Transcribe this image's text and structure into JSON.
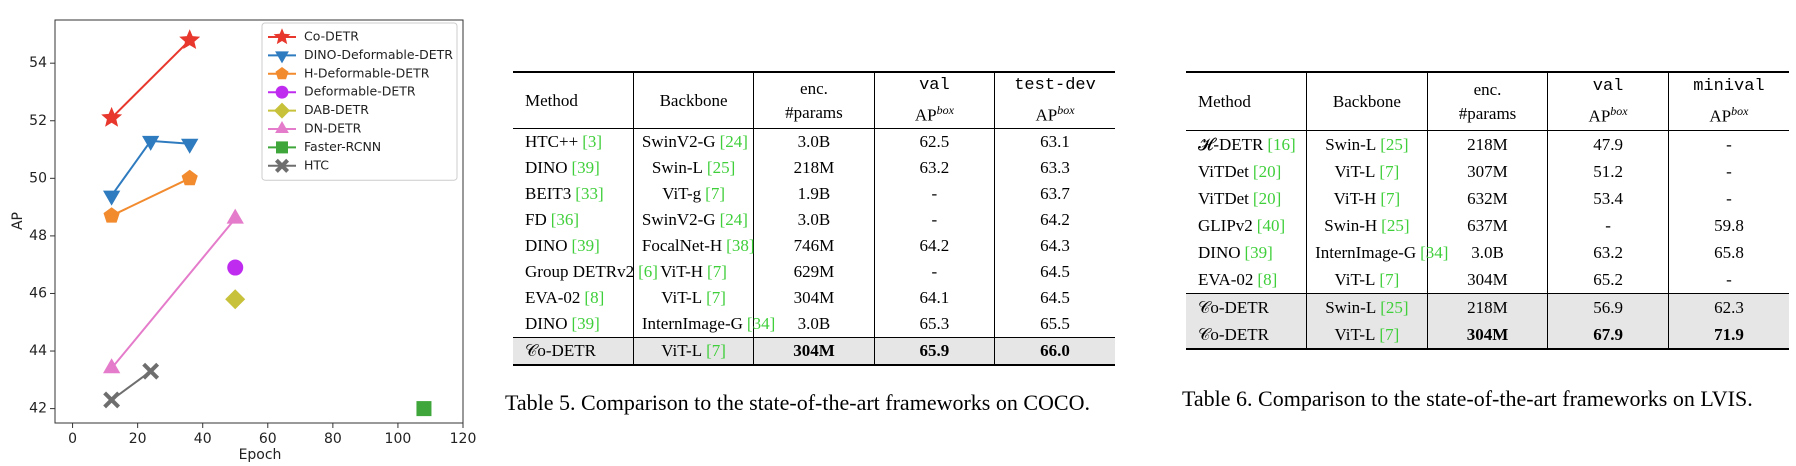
{
  "chart_data": {
    "type": "line",
    "x_label": "Epoch",
    "y_label": "AP",
    "xlim": [
      -5.4,
      120
    ],
    "ylim": [
      41.5,
      55.5
    ],
    "xticks": [
      0,
      20,
      40,
      60,
      80,
      100,
      120
    ],
    "yticks": [
      42,
      44,
      46,
      48,
      50,
      52,
      54
    ],
    "grid": false,
    "legend": "upper right",
    "series": [
      {
        "name": "Co-DETR",
        "color": "#e8372c",
        "marker": "star",
        "x": [
          12,
          36
        ],
        "y": [
          52.1,
          54.8
        ]
      },
      {
        "name": "DINO-Deformable-DETR",
        "color": "#2f7bbf",
        "marker": "triangle-down",
        "x": [
          12,
          24,
          36
        ],
        "y": [
          49.4,
          51.3,
          51.2
        ]
      },
      {
        "name": "H-Deformable-DETR",
        "color": "#f28a2e",
        "marker": "pentagon",
        "x": [
          12,
          36
        ],
        "y": [
          48.7,
          50.0
        ]
      },
      {
        "name": "Deformable-DETR",
        "color": "#bf2cf0",
        "marker": "circle",
        "x": [
          50
        ],
        "y": [
          46.9
        ]
      },
      {
        "name": "DAB-DETR",
        "color": "#c7c23a",
        "marker": "diamond",
        "x": [
          50
        ],
        "y": [
          45.8
        ]
      },
      {
        "name": "DN-DETR",
        "color": "#e57ccb",
        "marker": "triangle-up",
        "x": [
          12,
          50
        ],
        "y": [
          43.4,
          48.6
        ]
      },
      {
        "name": "Faster-RCNN",
        "color": "#3ea63a",
        "marker": "square",
        "x": [
          108
        ],
        "y": [
          42.0
        ]
      },
      {
        "name": "HTC",
        "color": "#6e6e6e",
        "marker": "x",
        "x": [
          12,
          24
        ],
        "y": [
          42.3,
          43.3
        ]
      }
    ]
  },
  "table5": {
    "columns": [
      {
        "lines": [
          "Method"
        ]
      },
      {
        "lines": [
          "Backbone"
        ]
      },
      {
        "lines": [
          "enc.",
          "#params"
        ]
      },
      {
        "mono": "val",
        "ap": "AP",
        "sup": "box"
      },
      {
        "mono": "test-dev",
        "ap": "AP",
        "sup": "box"
      }
    ],
    "rows": [
      [
        {
          "text": "HTC++",
          "ref": "[3]"
        },
        {
          "text": "SwinV2-G",
          "ref": "[24]"
        },
        "3.0B",
        "62.5",
        "63.1"
      ],
      [
        {
          "text": "DINO",
          "ref": "[39]"
        },
        {
          "text": "Swin-L",
          "ref": "[25]"
        },
        "218M",
        "63.2",
        "63.3"
      ],
      [
        {
          "text": "BEIT3",
          "ref": "[33]"
        },
        {
          "text": "ViT-g",
          "ref": "[7]"
        },
        "1.9B",
        "-",
        "63.7"
      ],
      [
        {
          "text": "FD",
          "ref": "[36]"
        },
        {
          "text": "SwinV2-G",
          "ref": "[24]"
        },
        "3.0B",
        "-",
        "64.2"
      ],
      [
        {
          "text": "DINO",
          "ref": "[39]"
        },
        {
          "text": "FocalNet-H",
          "ref": "[38]"
        },
        "746M",
        "64.2",
        "64.3"
      ],
      [
        {
          "text": "Group DETRv2",
          "ref": "[6]"
        },
        {
          "text": "ViT-H",
          "ref": "[7]"
        },
        "629M",
        "-",
        "64.5"
      ],
      [
        {
          "text": "EVA-02",
          "ref": "[8]"
        },
        {
          "text": "ViT-L",
          "ref": "[7]"
        },
        "304M",
        "64.1",
        "64.5"
      ],
      [
        {
          "text": "DINO",
          "ref": "[39]"
        },
        {
          "text": "InternImage-G",
          "ref": "[34]"
        },
        "3.0B",
        "65.3",
        "65.5"
      ],
      [
        "𝒞o-DETR",
        {
          "text": "ViT-L",
          "ref": "[7]"
        },
        {
          "text": "304M",
          "bold": true
        },
        {
          "text": "65.9",
          "bold": true
        },
        {
          "text": "66.0",
          "bold": true
        }
      ]
    ],
    "shaded_rows": [
      8
    ],
    "caption": "Table 5. Comparison to the state-of-the-art frameworks on COCO."
  },
  "table6": {
    "columns": [
      {
        "lines": [
          "Method"
        ]
      },
      {
        "lines": [
          "Backbone"
        ]
      },
      {
        "lines": [
          "enc.",
          "#params"
        ]
      },
      {
        "mono": "val",
        "ap": "AP",
        "sup": "box"
      },
      {
        "mono": "minival",
        "ap": "AP",
        "sup": "box"
      }
    ],
    "rows": [
      [
        {
          "text": "𝓗-DETR",
          "ref": "[16]"
        },
        {
          "text": "Swin-L",
          "ref": "[25]"
        },
        "218M",
        "47.9",
        "-"
      ],
      [
        {
          "text": "ViTDet",
          "ref": "[20]"
        },
        {
          "text": "ViT-L",
          "ref": "[7]"
        },
        "307M",
        "51.2",
        "-"
      ],
      [
        {
          "text": "ViTDet",
          "ref": "[20]"
        },
        {
          "text": "ViT-H",
          "ref": "[7]"
        },
        "632M",
        "53.4",
        "-"
      ],
      [
        {
          "text": "GLIPv2",
          "ref": "[40]"
        },
        {
          "text": "Swin-H",
          "ref": "[25]"
        },
        "637M",
        "-",
        "59.8"
      ],
      [
        {
          "text": "DINO",
          "ref": "[39]"
        },
        {
          "text": "InternImage-G",
          "ref": "[34]"
        },
        "3.0B",
        "63.2",
        "65.8"
      ],
      [
        {
          "text": "EVA-02",
          "ref": "[8]"
        },
        {
          "text": "ViT-L",
          "ref": "[7]"
        },
        "304M",
        "65.2",
        "-"
      ],
      [
        "𝒞o-DETR",
        {
          "text": "Swin-L",
          "ref": "[25]"
        },
        "218M",
        "56.9",
        "62.3"
      ],
      [
        "𝒞o-DETR",
        {
          "text": "ViT-L",
          "ref": "[7]"
        },
        {
          "text": "304M",
          "bold": true
        },
        {
          "text": "67.9",
          "bold": true
        },
        {
          "text": "71.9",
          "bold": true
        }
      ]
    ],
    "shaded_rows": [
      6,
      7
    ],
    "caption": "Table 6. Comparison to the state-of-the-art frameworks on LVIS."
  }
}
